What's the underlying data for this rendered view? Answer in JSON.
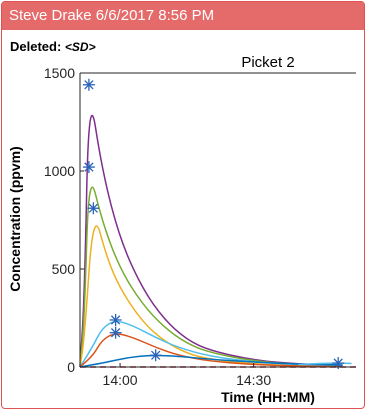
{
  "comment": {
    "header": "Steve Drake 6/6/2017 8:56 PM",
    "deleted_label": "Deleted:",
    "deleted_value": "<SD>",
    "border_color": "#e05252",
    "header_color": "#e56b6b"
  },
  "chart_data": {
    "type": "line",
    "title": "Picket 2",
    "xlabel": "Time (HH:MM)",
    "ylabel": "Concentration (ppvm)",
    "xlim": [
      "13:51",
      "14:53"
    ],
    "ylim": [
      0,
      1500
    ],
    "x_ticks": [
      "14:00",
      "14:30"
    ],
    "y_ticks": [
      0,
      500,
      1000,
      1500
    ],
    "grid": false,
    "series": [
      {
        "color": "#7e2f8e",
        "peak": {
          "x": "13:53",
          "y": 1440
        },
        "points": [
          [
            "13:51",
            0
          ],
          [
            "13:52",
            350
          ],
          [
            "13:53",
            1440
          ],
          [
            "13:56",
            1000
          ],
          [
            "14:00",
            650
          ],
          [
            "14:05",
            400
          ],
          [
            "14:10",
            240
          ],
          [
            "14:15",
            140
          ],
          [
            "14:20",
            85
          ],
          [
            "14:30",
            35
          ],
          [
            "14:40",
            15
          ],
          [
            "14:50",
            8
          ]
        ]
      },
      {
        "color": "#77ac30",
        "peak": {
          "x": "13:53",
          "y": 1020
        },
        "points": [
          [
            "13:51",
            0
          ],
          [
            "13:52",
            250
          ],
          [
            "13:53",
            1020
          ],
          [
            "13:56",
            740
          ],
          [
            "14:00",
            500
          ],
          [
            "14:05",
            320
          ],
          [
            "14:10",
            200
          ],
          [
            "14:15",
            120
          ],
          [
            "14:20",
            75
          ],
          [
            "14:30",
            30
          ],
          [
            "14:40",
            12
          ],
          [
            "14:50",
            6
          ]
        ]
      },
      {
        "color": "#edb120",
        "peak": {
          "x": "13:54",
          "y": 810
        },
        "points": [
          [
            "13:51",
            0
          ],
          [
            "13:52",
            150
          ],
          [
            "13:54",
            810
          ],
          [
            "13:57",
            560
          ],
          [
            "14:00",
            400
          ],
          [
            "14:05",
            230
          ],
          [
            "14:10",
            130
          ],
          [
            "14:15",
            70
          ],
          [
            "14:20",
            40
          ],
          [
            "14:30",
            15
          ],
          [
            "14:40",
            6
          ],
          [
            "14:50",
            3
          ]
        ]
      },
      {
        "color": "#4dbeee",
        "peak": {
          "x": "13:59",
          "y": 240
        },
        "points": [
          [
            "13:51",
            0
          ],
          [
            "13:54",
            110
          ],
          [
            "13:56",
            200
          ],
          [
            "13:59",
            240
          ],
          [
            "14:03",
            210
          ],
          [
            "14:08",
            150
          ],
          [
            "14:13",
            100
          ],
          [
            "14:20",
            55
          ],
          [
            "14:30",
            25
          ],
          [
            "14:40",
            12
          ],
          [
            "14:50",
            6
          ]
        ]
      },
      {
        "color": "#d95319",
        "peak": {
          "x": "13:59",
          "y": 175
        },
        "points": [
          [
            "13:51",
            0
          ],
          [
            "13:54",
            60
          ],
          [
            "13:56",
            140
          ],
          [
            "13:59",
            175
          ],
          [
            "14:03",
            150
          ],
          [
            "14:08",
            100
          ],
          [
            "14:13",
            60
          ],
          [
            "14:20",
            30
          ],
          [
            "14:30",
            12
          ],
          [
            "14:40",
            5
          ],
          [
            "14:50",
            2
          ]
        ]
      },
      {
        "color": "#0072bd",
        "peak": {
          "x": "14:08",
          "y": 60
        },
        "points": [
          [
            "13:51",
            0
          ],
          [
            "13:56",
            20
          ],
          [
            "14:00",
            40
          ],
          [
            "14:04",
            55
          ],
          [
            "14:08",
            60
          ],
          [
            "14:13",
            55
          ],
          [
            "14:20",
            40
          ],
          [
            "14:30",
            25
          ],
          [
            "14:40",
            15
          ],
          [
            "14:50",
            10
          ]
        ]
      },
      {
        "color": "#4dbeee",
        "peak": {
          "x": "14:49",
          "y": 20
        },
        "points": [
          [
            "14:40",
            12
          ],
          [
            "14:45",
            18
          ],
          [
            "14:49",
            20
          ],
          [
            "14:52",
            18
          ]
        ]
      }
    ],
    "reference_line": {
      "color": "#a2142f",
      "style": "dashed",
      "y": 0
    }
  }
}
